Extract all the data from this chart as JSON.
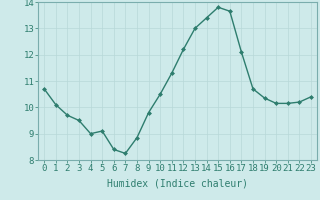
{
  "x": [
    0,
    1,
    2,
    3,
    4,
    5,
    6,
    7,
    8,
    9,
    10,
    11,
    12,
    13,
    14,
    15,
    16,
    17,
    18,
    19,
    20,
    21,
    22,
    23
  ],
  "y": [
    10.7,
    10.1,
    9.7,
    9.5,
    9.0,
    9.1,
    8.4,
    8.25,
    8.85,
    9.8,
    10.5,
    11.3,
    12.2,
    13.0,
    13.4,
    13.8,
    13.65,
    12.1,
    10.7,
    10.35,
    10.15,
    10.15,
    10.2,
    10.4
  ],
  "line_color": "#2e7d6e",
  "marker": "D",
  "marker_size": 2.0,
  "linewidth": 1.0,
  "background_color": "#ceeaea",
  "grid_color": "#b8d8d8",
  "xlabel": "Humidex (Indice chaleur)",
  "xlabel_fontsize": 7,
  "tick_fontsize": 6.5,
  "xlim": [
    -0.5,
    23.5
  ],
  "ylim": [
    8,
    14
  ],
  "yticks": [
    8,
    9,
    10,
    11,
    12,
    13,
    14
  ],
  "xticks": [
    0,
    1,
    2,
    3,
    4,
    5,
    6,
    7,
    8,
    9,
    10,
    11,
    12,
    13,
    14,
    15,
    16,
    17,
    18,
    19,
    20,
    21,
    22,
    23
  ]
}
